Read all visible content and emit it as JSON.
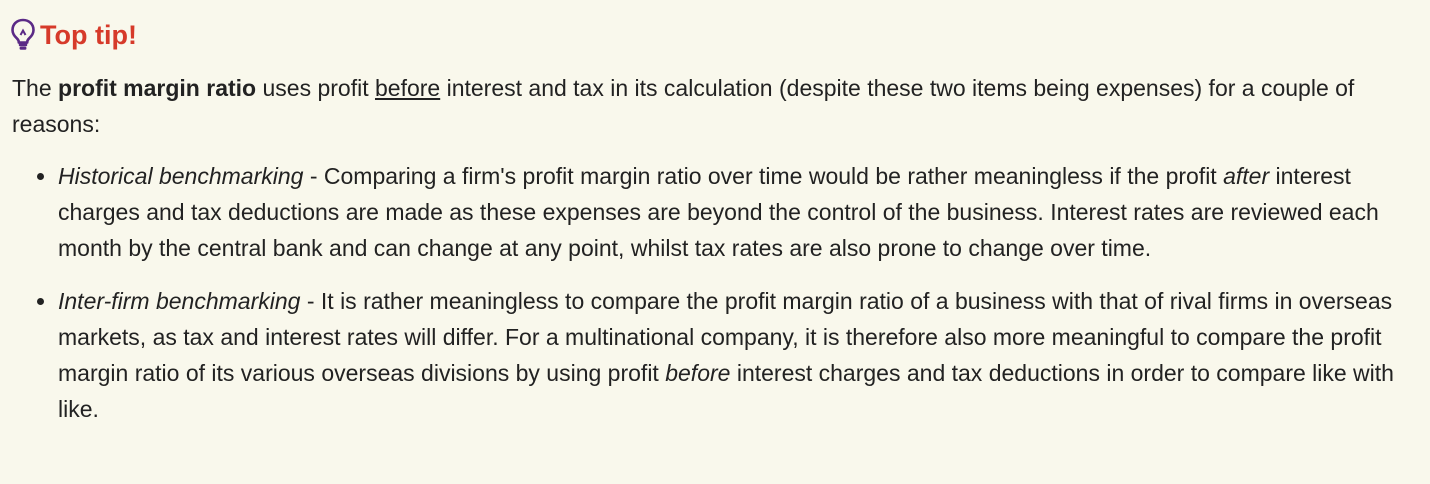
{
  "tip": {
    "title": "Top tip!",
    "icon": "lightbulb-icon",
    "title_color": "#d63a2a",
    "icon_color": "#5b2a86"
  },
  "intro": {
    "part1": "The ",
    "bold": "profit margin ratio",
    "part2": " uses profit ",
    "underlined": "before",
    "part3": " interest and tax in its calculation (despite these two items being expenses) for a couple of reasons:"
  },
  "reasons": [
    {
      "term": "Historical benchmarking",
      "text_a": " - Comparing a firm's profit margin ratio over time would be rather meaningless if the profit ",
      "emphasis": "after",
      "text_b": " interest charges and tax deductions are made as these expenses are beyond the control of the business. Interest rates are reviewed each month by the central bank and can change at any point, whilst tax rates are also prone to change over time."
    },
    {
      "term": "Inter-firm benchmarking",
      "text_a": " - It is rather meaningless to compare the profit margin ratio of a business with that of rival firms in overseas markets, as tax and interest rates will differ. For a multinational company, it is therefore also more meaningful to compare the profit margin ratio of its various overseas divisions by using profit ",
      "emphasis": "before",
      "text_b": " interest charges and tax deductions in order to compare like with like."
    }
  ]
}
